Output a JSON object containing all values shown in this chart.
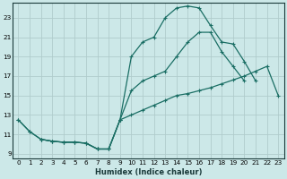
{
  "bg_color": "#cce8e8",
  "grid_color": "#b0cccc",
  "line_color": "#1a6e64",
  "xlabel": "Humidex (Indice chaleur)",
  "xlim": [
    -0.5,
    23.5
  ],
  "ylim": [
    8.5,
    24.5
  ],
  "yticks": [
    9,
    11,
    13,
    15,
    17,
    19,
    21,
    23
  ],
  "xticks": [
    0,
    1,
    2,
    3,
    4,
    5,
    6,
    7,
    8,
    9,
    10,
    11,
    12,
    13,
    14,
    15,
    16,
    17,
    18,
    19,
    20,
    21,
    22,
    23
  ],
  "line1_x": [
    0,
    1,
    2,
    3,
    4,
    5,
    6,
    7,
    8,
    9,
    10,
    11,
    12,
    13,
    14,
    15,
    16,
    17,
    18,
    19,
    20,
    21,
    22,
    23
  ],
  "line1_y": [
    12.5,
    11.3,
    10.5,
    10.3,
    10.2,
    10.2,
    10.1,
    9.5,
    9.5,
    12.5,
    13.0,
    13.5,
    14.0,
    14.5,
    15.0,
    15.2,
    15.5,
    15.8,
    16.2,
    16.6,
    17.0,
    17.5,
    18.0,
    15.0
  ],
  "line2_x": [
    0,
    1,
    2,
    3,
    4,
    5,
    6,
    7,
    8,
    9,
    10,
    11,
    12,
    13,
    14,
    15,
    16,
    17,
    18,
    19,
    20,
    21
  ],
  "line2_y": [
    12.5,
    11.3,
    10.5,
    10.3,
    10.2,
    10.2,
    10.1,
    9.5,
    9.5,
    12.5,
    19.0,
    20.5,
    21.0,
    23.0,
    24.0,
    24.2,
    24.0,
    22.2,
    20.5,
    20.3,
    18.5,
    16.5
  ],
  "line3_x": [
    2,
    3,
    4,
    5,
    6,
    7,
    8,
    9,
    10,
    11,
    12,
    13,
    14,
    15,
    16,
    17,
    18,
    19,
    20
  ],
  "line3_y": [
    10.5,
    10.3,
    10.2,
    10.2,
    10.1,
    9.5,
    9.5,
    12.5,
    15.5,
    16.5,
    17.0,
    17.5,
    19.0,
    20.5,
    21.5,
    21.5,
    19.5,
    18.0,
    16.5
  ]
}
